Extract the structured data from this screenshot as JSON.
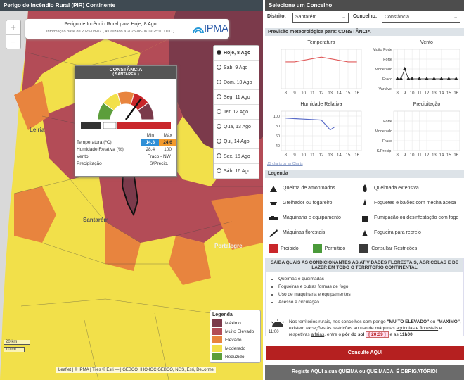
{
  "map_panel": {
    "header": "Perigo de Incêndio Rural (PIR) Continente",
    "title": "Perigo de Incêndio Rural para Hoje, 8 Ago",
    "info": "Informação base de 2025-08-07 ( Atualizado a 2025-08-08 09:25:01 UTC )",
    "logo": "IPMA",
    "zoom_in": "+",
    "zoom_out": "−",
    "days": [
      "Hoje, 8 Ago",
      "Sáb, 9 Ago",
      "Dom, 10 Ago",
      "Seg, 11 Ago",
      "Ter, 12 Ago",
      "Qua, 13 Ago",
      "Qui, 14 Ago",
      "Sex, 15 Ago",
      "Sáb, 16 Ago"
    ],
    "places": [
      "Leiria",
      "Santarém",
      "Portalegre"
    ],
    "popup": {
      "name": "CONSTÂNCIA",
      "district": "( SANTARÉM )",
      "col_min": "Min",
      "col_max": "Máx",
      "rows": [
        [
          "Temperatura (ºC)",
          "14.3",
          "24.6"
        ],
        [
          "Humidade Relativa (%)",
          "28.4",
          "100"
        ],
        [
          "Vento",
          "Fraco - NW"
        ],
        [
          "Precipitação",
          "S/Precip."
        ]
      ]
    },
    "legend": {
      "title": "Legenda",
      "items": [
        {
          "label": "Máximo",
          "color": "#7b3a4b"
        },
        {
          "label": "Muito Elevado",
          "color": "#b34c57"
        },
        {
          "label": "Elevado",
          "color": "#e8843e"
        },
        {
          "label": "Moderado",
          "color": "#f2e04a"
        },
        {
          "label": "Reduzido",
          "color": "#5c9e3b"
        }
      ]
    },
    "scale": [
      "20 km",
      "10 mi"
    ],
    "attribution": "Leaflet | © IPMA | Tiles © Esri — | GEBCO, IHO-IOC GEBCO, NGS, Esri, DeLorme"
  },
  "side_panel": {
    "header": "Selecione um Concelho",
    "district_label": "Distrito:",
    "district": "Santarém",
    "council_label": "Concelho:",
    "council": "Constância",
    "forecast_title": "Previsão meteorológica para: CONSTÂNCIA",
    "credit": "JS charts by amCharts",
    "legend_title": "Legenda",
    "legend_items": [
      "Queima de amontoados",
      "Queimada extensiva",
      "Grelhador ou fogareiro",
      "Foguetes e balões com mecha acesa",
      "Maquinaria e equipamento",
      "Fumigação ou desinfestação com fogo",
      "Máquinas florestais",
      "Fogueira para recreio"
    ],
    "status": [
      {
        "label": "Proibido",
        "color": "#c9262a"
      },
      {
        "label": "Permitido",
        "color": "#4a9a3a"
      },
      {
        "label": "Consultar Restrições",
        "color": "#3a3a3a"
      }
    ],
    "info_title": "SAIBA QUAIS AS CONDICIONANTES ÀS ATIVIDADES FLORESTAIS, AGRÍCOLAS E DE LAZER EM TODO O TERRITÓRIO CONTINENTAL",
    "info_list": [
      "Queimas e queimadas",
      "Fogueiras e outras formas de fogo",
      "Uso de maquinaria e equipamentos",
      "Acesso e circulação"
    ],
    "icon_time": "11:00",
    "note": [
      "Nos territórios rurais, nos concelhos com perigo ",
      "\"MUITO ELEVADO\"",
      " ou ",
      "\"MÁXIMO\"",
      ", existem exceções às restrições ao uso de máquinas ",
      "agrícolas e florestais",
      " e respetivas ",
      "alfaias",
      ", entre o ",
      "pôr do sol ",
      "[ 20:39 ]",
      " e as ",
      "11h00",
      "."
    ],
    "button": "Consulte AQUI",
    "footer": "Registe AQUI a sua QUEIMA ou QUEIMADA. É OBRIGATÓRIO!"
  },
  "chart_data": [
    {
      "type": "line",
      "title": "Temperatura",
      "x": [
        8,
        9,
        10,
        11,
        12,
        13,
        14,
        15,
        16
      ],
      "values": [
        27,
        27,
        28,
        29,
        30,
        29,
        28,
        27,
        27
      ],
      "color": "#e05a5a",
      "xlim": [
        7.5,
        16.5
      ],
      "xticks": [
        8,
        9,
        10,
        11,
        12,
        13,
        14,
        15,
        16
      ],
      "ylim": [
        10,
        35
      ],
      "yticks": []
    },
    {
      "type": "line",
      "title": "Vento",
      "x": [
        8,
        8.5,
        9,
        9.5,
        10,
        11,
        12,
        13,
        14,
        15,
        16
      ],
      "values": [
        1,
        1,
        2,
        1,
        1,
        1,
        1,
        1,
        1,
        1,
        1
      ],
      "color": "#222222",
      "xlim": [
        7.5,
        16.5
      ],
      "xticks": [
        8,
        9,
        10,
        11,
        12,
        13,
        14,
        15,
        16
      ],
      "ylim": [
        0,
        4
      ],
      "yticks": [
        {
          "value": 0,
          "label": "Variável"
        },
        {
          "value": 1,
          "label": "Fraco"
        },
        {
          "value": 2,
          "label": "Moderado"
        },
        {
          "value": 3,
          "label": "Forte"
        },
        {
          "value": 4,
          "label": "Muito Forte"
        }
      ]
    },
    {
      "type": "line",
      "title": "Humidade Relativa",
      "x": [
        8,
        9,
        10,
        11,
        12,
        13,
        13.5
      ],
      "values": [
        96,
        95,
        94,
        93,
        92,
        72,
        78
      ],
      "color": "#5a6cc8",
      "xlim": [
        7.5,
        16.5
      ],
      "xticks": [
        8,
        9,
        10,
        11,
        12,
        13,
        14,
        15,
        16
      ],
      "ylim": [
        30,
        110
      ],
      "yticks": [
        40,
        60,
        80,
        100
      ]
    },
    {
      "type": "line",
      "title": "Precipitação",
      "x": [],
      "values": [],
      "color": "#5a6cc8",
      "xlim": [
        7.5,
        16.5
      ],
      "xticks": [
        8,
        9,
        10,
        11,
        12,
        13,
        14,
        15,
        16
      ],
      "ylim": [
        0,
        4
      ],
      "yticks": [
        {
          "value": 0,
          "label": "S/Precip."
        },
        {
          "value": 1,
          "label": "Fraco"
        },
        {
          "value": 2,
          "label": "Moderado"
        },
        {
          "value": 3,
          "label": "Forte"
        }
      ]
    }
  ]
}
